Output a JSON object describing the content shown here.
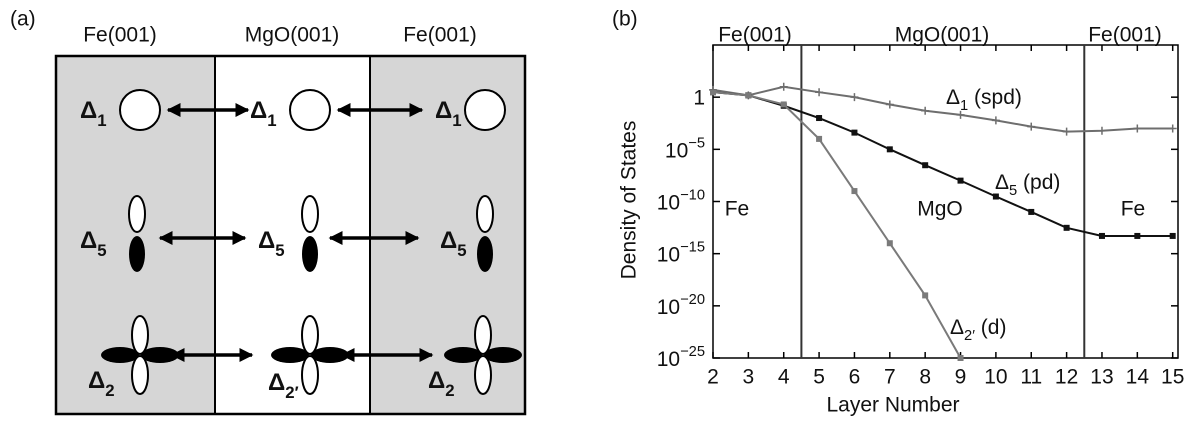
{
  "diagram": {
    "panel_label": "(a)",
    "headers": [
      "Fe(001)",
      "MgO(001)",
      "Fe(001)"
    ],
    "columns": [
      {
        "labels": [
          "Δ1",
          "Δ5",
          "Δ2"
        ]
      },
      {
        "labels": [
          "Δ1",
          "Δ5",
          "Δ2′"
        ]
      },
      {
        "labels": [
          "Δ1",
          "Δ5",
          "Δ2"
        ]
      }
    ]
  },
  "chart_data": {
    "type": "line",
    "panel_label": "(b)",
    "top_labels": [
      "Fe(001)",
      "MgO(001)",
      "Fe(001)"
    ],
    "region_labels": [
      "Fe",
      "MgO",
      "Fe"
    ],
    "x_label": "Layer Number",
    "y_label": "Density of States",
    "x": [
      2,
      3,
      4,
      5,
      6,
      7,
      8,
      9,
      10,
      11,
      12,
      13,
      14,
      15
    ],
    "xlim": [
      2,
      15.15
    ],
    "xticks": [
      2,
      3,
      4,
      5,
      6,
      7,
      8,
      9,
      10,
      11,
      12,
      13,
      14,
      15
    ],
    "yscale": "log",
    "ylim": [
      1e-25,
      100000
    ],
    "yticks": [
      {
        "value": 1e-25,
        "label": "10−25"
      },
      {
        "value": 1e-20,
        "label": "10−20"
      },
      {
        "value": 1e-15,
        "label": "10−15"
      },
      {
        "value": 1e-10,
        "label": "10−10"
      },
      {
        "value": 1e-05,
        "label": "10−5"
      },
      1
    ],
    "boundaries": [
      4.5,
      12.5
    ],
    "series": [
      {
        "name": "Δ1 (spd)",
        "color": "#6e6e6e",
        "marker": "plus",
        "values": [
          5,
          1.5,
          10,
          3,
          1,
          0.2,
          0.05,
          0.02,
          0.006,
          0.0015,
          0.0005,
          0.0006,
          0.001,
          0.001
        ]
      },
      {
        "name": "Δ5 (pd)",
        "color": "#111111",
        "marker": "square",
        "values": [
          3,
          1.5,
          0.15,
          0.01,
          0.0004,
          1e-05,
          3e-07,
          1e-08,
          3e-10,
          1e-11,
          3e-13,
          5e-14,
          5e-14,
          5e-14
        ]
      },
      {
        "name": "Δ2′ (d)",
        "color": "#7a7a7a",
        "marker": "square",
        "values": [
          3,
          1.5,
          0.2,
          0.0001,
          1e-09,
          1e-14,
          1e-19,
          1e-25,
          null,
          null,
          null,
          null,
          null,
          null
        ]
      }
    ]
  }
}
